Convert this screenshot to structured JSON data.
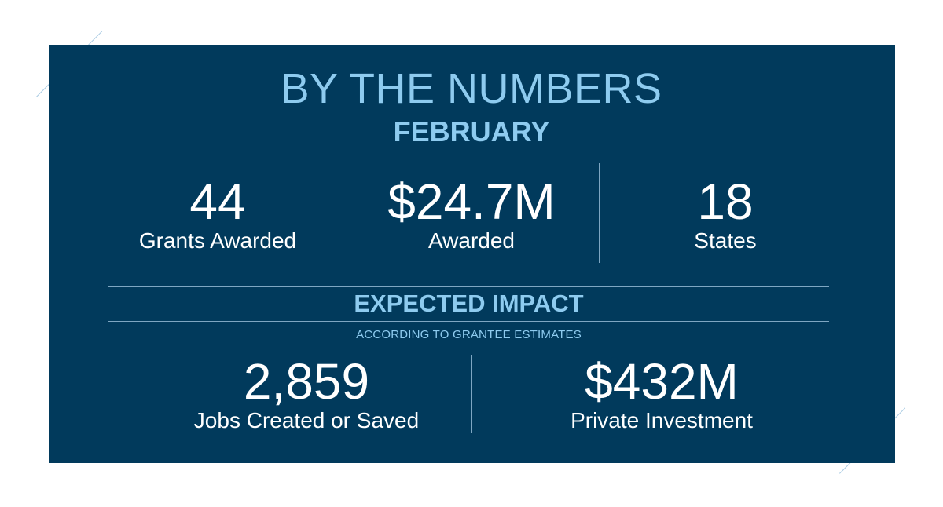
{
  "header": {
    "title": "BY THE NUMBERS",
    "subtitle": "FEBRUARY"
  },
  "stats": [
    {
      "value": "44",
      "label": "Grants Awarded"
    },
    {
      "value": "$24.7M",
      "label": "Awarded"
    },
    {
      "value": "18",
      "label": "States"
    }
  ],
  "impact": {
    "title": "EXPECTED IMPACT",
    "subtitle": "ACCORDING TO GRANTEE ESTIMATES",
    "stats": [
      {
        "value": "2,859",
        "label": "Jobs Created or Saved"
      },
      {
        "value": "$432M",
        "label": "Private Investment"
      }
    ]
  },
  "colors": {
    "panel_background": "#013a5c",
    "accent_light_blue": "#8ecbef",
    "text": "#ffffff"
  }
}
